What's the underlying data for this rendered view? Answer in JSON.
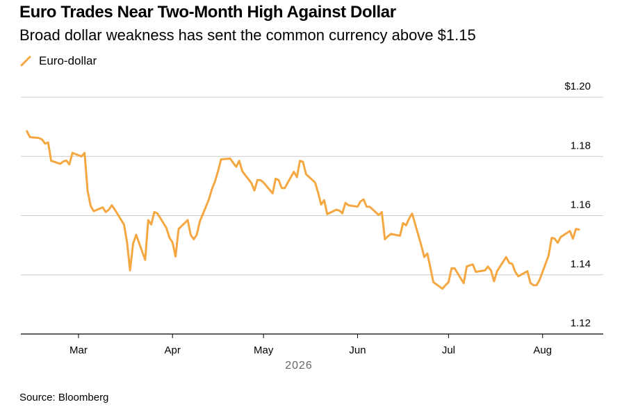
{
  "title": "Euro Trades Near Two-Month High Against Dollar",
  "subtitle": "Broad dollar weakness has sent the common currency above $1.15",
  "source": "Source: Bloomberg",
  "colors": {
    "line": "#F5A742",
    "grid": "#cccccc",
    "axis": "#000000"
  },
  "chart_data": {
    "type": "line",
    "title": "Euro Trades Near Two-Month High Against Dollar",
    "subtitle": "Broad dollar weakness has sent the common currency above $1.15",
    "ylim": [
      1.12,
      1.2
    ],
    "y_ticks": [
      "$1.20",
      "1.18",
      "1.16",
      "1.14",
      "1.12"
    ],
    "y_tick_values": [
      1.2,
      1.18,
      1.16,
      1.14,
      1.12
    ],
    "x_ticks": [
      {
        "label": "Mar",
        "date": "2026-03-01"
      },
      {
        "label": "Apr",
        "date": "2026-04-01"
      },
      {
        "label": "May",
        "date": "2026-05-01"
      },
      {
        "label": "Jun",
        "date": "2026-06-01"
      },
      {
        "label": "Jul",
        "date": "2026-07-01"
      },
      {
        "label": "Aug",
        "date": "2026-08-01"
      }
    ],
    "x_range": [
      "2026-02-10",
      "2026-08-21"
    ],
    "year_label": "2026",
    "grid": true,
    "legend": "top-left",
    "series": [
      {
        "name": "Euro-dollar",
        "color": "#F5A742",
        "points": [
          [
            "2026-02-12",
            1.1885
          ],
          [
            "2026-02-13",
            1.1865
          ],
          [
            "2026-02-16",
            1.1862
          ],
          [
            "2026-02-17",
            1.1857
          ],
          [
            "2026-02-18",
            1.1843
          ],
          [
            "2026-02-19",
            1.1847
          ],
          [
            "2026-02-20",
            1.1785
          ],
          [
            "2026-02-23",
            1.1775
          ],
          [
            "2026-02-24",
            1.1783
          ],
          [
            "2026-02-25",
            1.1786
          ],
          [
            "2026-02-26",
            1.1773
          ],
          [
            "2026-02-27",
            1.1812
          ],
          [
            "2026-03-02",
            1.18
          ],
          [
            "2026-03-03",
            1.1812
          ],
          [
            "2026-03-04",
            1.1685
          ],
          [
            "2026-03-05",
            1.1633
          ],
          [
            "2026-03-06",
            1.1615
          ],
          [
            "2026-03-09",
            1.1628
          ],
          [
            "2026-03-10",
            1.1612
          ],
          [
            "2026-03-11",
            1.162
          ],
          [
            "2026-03-12",
            1.1635
          ],
          [
            "2026-03-13",
            1.162
          ],
          [
            "2026-03-16",
            1.157
          ],
          [
            "2026-03-17",
            1.151
          ],
          [
            "2026-03-18",
            1.1415
          ],
          [
            "2026-03-19",
            1.1505
          ],
          [
            "2026-03-20",
            1.1535
          ],
          [
            "2026-03-23",
            1.145
          ],
          [
            "2026-03-24",
            1.1585
          ],
          [
            "2026-03-25",
            1.157
          ],
          [
            "2026-03-26",
            1.1612
          ],
          [
            "2026-03-27",
            1.1608
          ],
          [
            "2026-03-30",
            1.1558
          ],
          [
            "2026-03-31",
            1.1525
          ],
          [
            "2026-04-01",
            1.151
          ],
          [
            "2026-04-02",
            1.1462
          ],
          [
            "2026-04-03",
            1.1555
          ],
          [
            "2026-04-06",
            1.1585
          ],
          [
            "2026-04-07",
            1.1535
          ],
          [
            "2026-04-08",
            1.152
          ],
          [
            "2026-04-09",
            1.1535
          ],
          [
            "2026-04-10",
            1.158
          ],
          [
            "2026-04-13",
            1.1655
          ],
          [
            "2026-04-14",
            1.169
          ],
          [
            "2026-04-15",
            1.1715
          ],
          [
            "2026-04-16",
            1.175
          ],
          [
            "2026-04-17",
            1.179
          ],
          [
            "2026-04-20",
            1.1793
          ],
          [
            "2026-04-21",
            1.1778
          ],
          [
            "2026-04-22",
            1.1765
          ],
          [
            "2026-04-23",
            1.1785
          ],
          [
            "2026-04-24",
            1.175
          ],
          [
            "2026-04-27",
            1.171
          ],
          [
            "2026-04-28",
            1.1685
          ],
          [
            "2026-04-29",
            1.172
          ],
          [
            "2026-04-30",
            1.172
          ],
          [
            "2026-05-01",
            1.1712
          ],
          [
            "2026-05-04",
            1.1675
          ],
          [
            "2026-05-05",
            1.1725
          ],
          [
            "2026-05-06",
            1.172
          ],
          [
            "2026-05-07",
            1.1693
          ],
          [
            "2026-05-08",
            1.1693
          ],
          [
            "2026-05-11",
            1.1748
          ],
          [
            "2026-05-12",
            1.173
          ],
          [
            "2026-05-13",
            1.1785
          ],
          [
            "2026-05-14",
            1.1782
          ],
          [
            "2026-05-15",
            1.174
          ],
          [
            "2026-05-18",
            1.1712
          ],
          [
            "2026-05-19",
            1.1678
          ],
          [
            "2026-05-20",
            1.1637
          ],
          [
            "2026-05-21",
            1.1652
          ],
          [
            "2026-05-22",
            1.1605
          ],
          [
            "2026-05-25",
            1.162
          ],
          [
            "2026-05-26",
            1.1617
          ],
          [
            "2026-05-27",
            1.1608
          ],
          [
            "2026-05-28",
            1.1643
          ],
          [
            "2026-05-29",
            1.1635
          ],
          [
            "2026-06-01",
            1.163
          ],
          [
            "2026-06-02",
            1.1648
          ],
          [
            "2026-06-03",
            1.1655
          ],
          [
            "2026-06-04",
            1.163
          ],
          [
            "2026-06-05",
            1.163
          ],
          [
            "2026-06-08",
            1.1602
          ],
          [
            "2026-06-09",
            1.1612
          ],
          [
            "2026-06-10",
            1.152
          ],
          [
            "2026-06-11",
            1.153
          ],
          [
            "2026-06-12",
            1.1538
          ],
          [
            "2026-06-15",
            1.1532
          ],
          [
            "2026-06-16",
            1.1575
          ],
          [
            "2026-06-17",
            1.1567
          ],
          [
            "2026-06-18",
            1.159
          ],
          [
            "2026-06-19",
            1.1607
          ],
          [
            "2026-06-22",
            1.15
          ],
          [
            "2026-06-23",
            1.146
          ],
          [
            "2026-06-24",
            1.1472
          ],
          [
            "2026-06-25",
            1.1425
          ],
          [
            "2026-06-26",
            1.1375
          ],
          [
            "2026-06-29",
            1.1353
          ],
          [
            "2026-06-30",
            1.1365
          ],
          [
            "2026-07-01",
            1.1375
          ],
          [
            "2026-07-02",
            1.1422
          ],
          [
            "2026-07-03",
            1.1422
          ],
          [
            "2026-07-06",
            1.1372
          ],
          [
            "2026-07-07",
            1.1428
          ],
          [
            "2026-07-08",
            1.1432
          ],
          [
            "2026-07-09",
            1.1435
          ],
          [
            "2026-07-10",
            1.141
          ],
          [
            "2026-07-13",
            1.1415
          ],
          [
            "2026-07-14",
            1.1428
          ],
          [
            "2026-07-15",
            1.1415
          ],
          [
            "2026-07-16",
            1.1378
          ],
          [
            "2026-07-17",
            1.1412
          ],
          [
            "2026-07-20",
            1.146
          ],
          [
            "2026-07-21",
            1.144
          ],
          [
            "2026-07-22",
            1.1437
          ],
          [
            "2026-07-23",
            1.141
          ],
          [
            "2026-07-24",
            1.1395
          ],
          [
            "2026-07-27",
            1.1412
          ],
          [
            "2026-07-28",
            1.1372
          ],
          [
            "2026-07-29",
            1.1365
          ],
          [
            "2026-07-30",
            1.1365
          ],
          [
            "2026-07-31",
            1.1382
          ],
          [
            "2026-08-03",
            1.1465
          ],
          [
            "2026-08-04",
            1.1525
          ],
          [
            "2026-08-05",
            1.1522
          ],
          [
            "2026-08-06",
            1.1508
          ],
          [
            "2026-08-07",
            1.1528
          ],
          [
            "2026-08-10",
            1.1548
          ],
          [
            "2026-08-11",
            1.1522
          ],
          [
            "2026-08-12",
            1.1555
          ],
          [
            "2026-08-13",
            1.1553
          ]
        ]
      }
    ]
  }
}
